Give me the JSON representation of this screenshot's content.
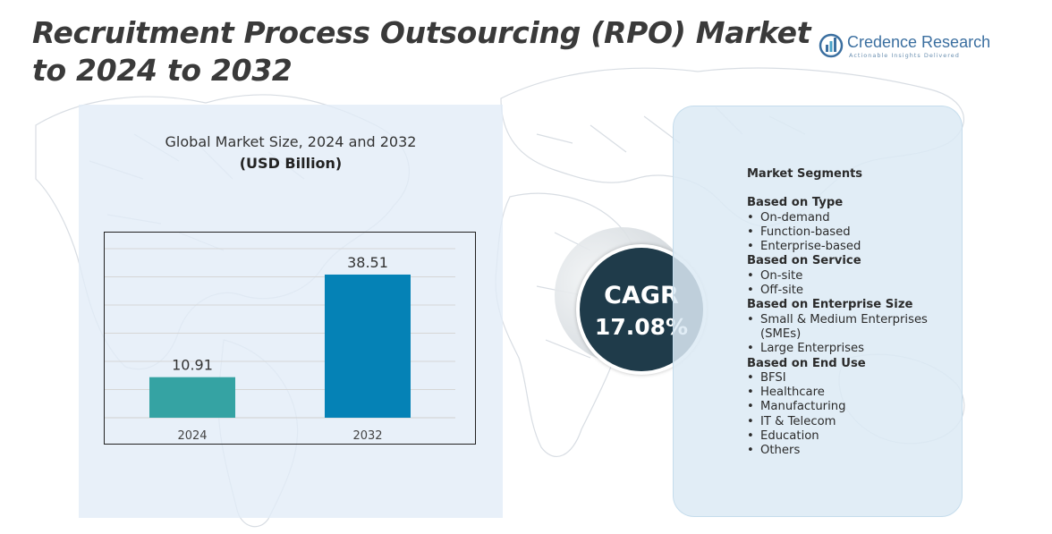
{
  "page": {
    "title": "Recruitment Process Outsourcing (RPO) Market to 2024 to 2032"
  },
  "logo": {
    "name": "Credence Research",
    "tagline": "Actionable Insights Delivered",
    "icon": "credence-logo-icon"
  },
  "chart_data": {
    "type": "bar",
    "title": "Global Market Size, 2024 and 2032",
    "subtitle": "(USD Billion)",
    "categories": [
      "2024",
      "2032"
    ],
    "values": [
      10.91,
      38.51
    ],
    "value_labels": [
      "10.91",
      "38.51"
    ],
    "bar_colors": [
      "#35a3a3",
      "#0582b6"
    ],
    "ylim": [
      0,
      45
    ],
    "grid": true,
    "xlabel": "",
    "ylabel": ""
  },
  "cagr": {
    "label": "CAGR",
    "value": "17.08%"
  },
  "segments": {
    "heading": "Market Segments",
    "groups": [
      {
        "title": "Based on Type",
        "items": [
          "On-demand",
          "Function-based",
          "Enterprise-based"
        ]
      },
      {
        "title": "Based on Service",
        "items": [
          "On-site",
          "Off-site"
        ]
      },
      {
        "title": "Based on Enterprise  Size",
        "items": [
          "Small & Medium Enterprises (SMEs)",
          "Large Enterprises"
        ]
      },
      {
        "title": "Based on End Use",
        "items": [
          "BFSI",
          "Healthcare",
          "Manufacturing",
          "IT & Telecom",
          "Education",
          "Others"
        ]
      }
    ]
  },
  "colors": {
    "title": "#3a3a3a",
    "cagr_bg": "#1f3b4a",
    "panel_bg": "#e1ecf7",
    "brand": "#3b6fa0"
  }
}
